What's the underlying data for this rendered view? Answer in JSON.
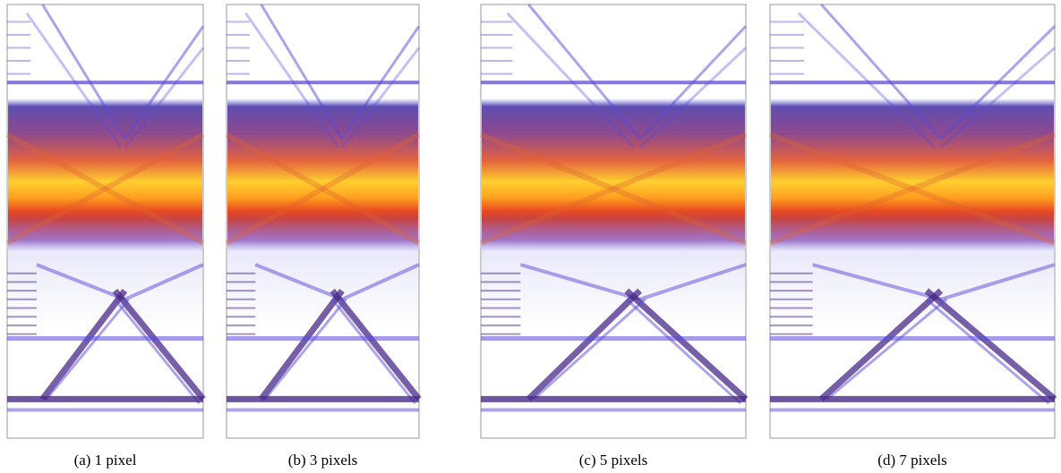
{
  "panels": [
    {
      "caption": "(a) 1 pixel"
    },
    {
      "caption": "(b) 3 pixels"
    },
    {
      "caption": "(c) 5 pixels"
    },
    {
      "caption": "(d) 7 pixels"
    }
  ]
}
